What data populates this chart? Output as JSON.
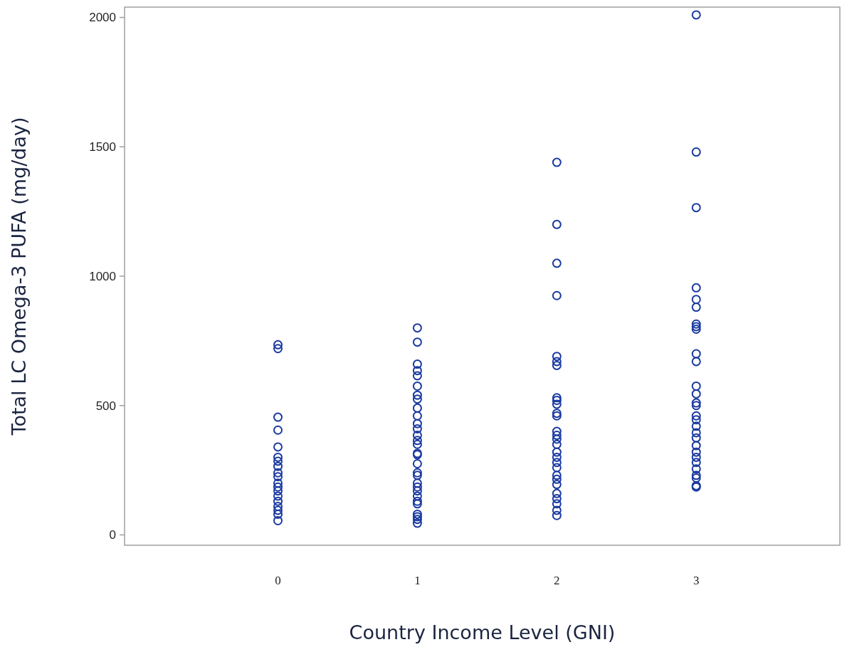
{
  "chart_data": {
    "type": "scatter",
    "xlabel": "Country Income Level  (GNI)",
    "ylabel": "Total LC Omega-3 PUFA  (mg/day)",
    "xlim": [
      -1.1,
      4.03
    ],
    "xticks": [
      0,
      1,
      2,
      3
    ],
    "ylim": [
      -40,
      2040
    ],
    "yticks": [
      0,
      500,
      1000,
      1500,
      2000
    ],
    "grid": false,
    "marker": "circle",
    "series": [
      {
        "color": "#1a3aa0",
        "x": [
          0,
          0,
          0,
          0,
          0,
          0,
          0,
          0,
          0,
          0,
          0,
          0,
          0,
          0,
          0,
          0,
          0,
          0,
          0,
          1,
          1,
          1,
          1,
          1,
          1,
          1,
          1,
          1,
          1,
          1,
          1,
          1,
          1,
          1,
          1,
          1,
          1,
          1,
          1,
          1,
          1,
          1,
          1,
          1,
          1,
          1,
          1,
          1,
          1,
          2,
          2,
          2,
          2,
          2,
          2,
          2,
          2,
          2,
          2,
          2,
          2,
          2,
          2,
          2,
          2,
          2,
          2,
          2,
          2,
          2,
          2,
          2,
          2,
          2,
          2,
          2,
          2,
          3,
          3,
          3,
          3,
          3,
          3,
          3,
          3,
          3,
          3,
          3,
          3,
          3,
          3,
          3,
          3,
          3,
          3,
          3,
          3,
          3,
          3,
          3,
          3,
          3,
          3,
          3,
          3,
          3
        ],
        "values": [
          735,
          720,
          455,
          405,
          340,
          300,
          285,
          265,
          240,
          225,
          200,
          185,
          170,
          150,
          130,
          110,
          95,
          80,
          55,
          800,
          745,
          660,
          635,
          615,
          575,
          540,
          525,
          490,
          460,
          430,
          410,
          385,
          365,
          350,
          315,
          310,
          275,
          240,
          230,
          200,
          185,
          170,
          150,
          130,
          120,
          80,
          70,
          60,
          45,
          1440,
          1200,
          1050,
          925,
          690,
          670,
          655,
          530,
          520,
          505,
          470,
          460,
          400,
          385,
          370,
          350,
          320,
          300,
          280,
          260,
          230,
          215,
          195,
          160,
          140,
          120,
          95,
          75,
          2010,
          1480,
          1265,
          955,
          910,
          880,
          815,
          805,
          795,
          700,
          670,
          575,
          545,
          510,
          500,
          460,
          445,
          420,
          395,
          375,
          345,
          320,
          300,
          280,
          255,
          230,
          220,
          190,
          185
        ]
      }
    ]
  }
}
